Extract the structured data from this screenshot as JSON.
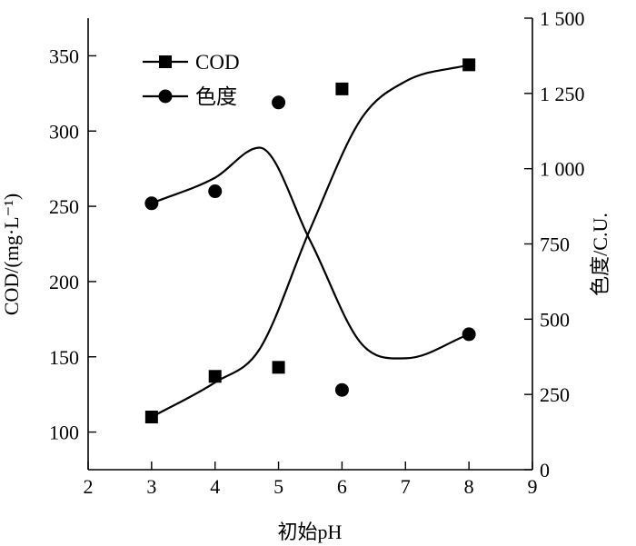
{
  "chart_data": {
    "type": "scatter",
    "x_label": "初始pH",
    "y_left_label": "COD/(mg·L⁻¹)",
    "y_right_label": "色度/C.U.",
    "x_range": [
      2,
      9
    ],
    "x_ticks": [
      2,
      3,
      4,
      5,
      6,
      7,
      8,
      9
    ],
    "x_tick_labels": [
      "2",
      "3",
      "4",
      "5",
      "6",
      "7",
      "8",
      "9"
    ],
    "y_left_range": [
      75,
      375
    ],
    "y_left_ticks": [
      100,
      150,
      200,
      250,
      300,
      350
    ],
    "y_left_tick_labels": [
      "100",
      "150",
      "200",
      "250",
      "300",
      "350"
    ],
    "y_right_range": [
      0,
      1500
    ],
    "y_right_ticks": [
      0,
      250,
      500,
      750,
      1000,
      1250,
      1500
    ],
    "y_right_tick_labels": [
      "0",
      "250",
      "500",
      "750",
      "1 000",
      "1 250",
      "1 500"
    ],
    "legend_position": "top-left",
    "series": [
      {
        "name": "COD",
        "marker": "square",
        "axis": "left",
        "x": [
          3,
          4,
          5,
          6,
          8
        ],
        "y": [
          110,
          137,
          143,
          328,
          344
        ],
        "fit_x": [
          3,
          4,
          4.7,
          5.5,
          6.3,
          7,
          8
        ],
        "fit_y": [
          110,
          133,
          155,
          235,
          308,
          333,
          344
        ]
      },
      {
        "name": "色度",
        "marker": "circle",
        "axis": "right",
        "x": [
          3,
          4,
          5,
          6,
          8
        ],
        "y": [
          885,
          925,
          1220,
          265,
          450
        ],
        "fit_x": [
          3,
          4,
          4.7,
          5.5,
          6.3,
          7,
          8
        ],
        "fit_y": [
          885,
          970,
          1070,
          760,
          420,
          370,
          450
        ]
      }
    ]
  }
}
